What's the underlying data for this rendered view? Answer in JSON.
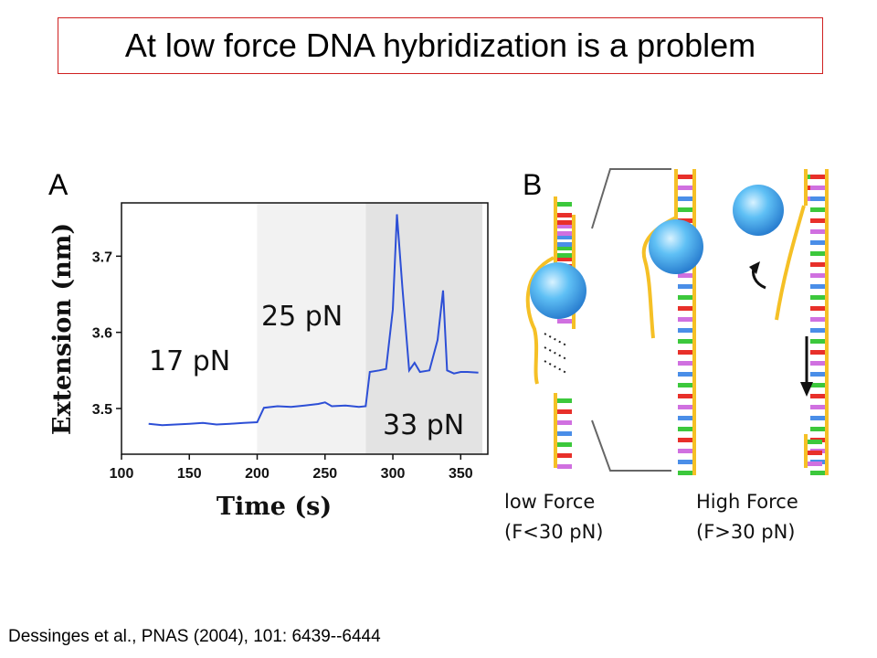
{
  "title": "At low force DNA hybridization is a problem",
  "citation": "Dessinges et al., PNAS (2004), 101: 6439--6444",
  "panel_a": {
    "letter": "A"
  },
  "panel_b": {
    "letter": "B",
    "caption_low_line1": "low Force",
    "caption_low_line2": "(F<30 pN)",
    "caption_high_line1": "High Force",
    "caption_high_line2": "(F>30 pN)"
  },
  "colors": {
    "trace": "#2d4fd6",
    "shade_mid": "#f2f2f2",
    "shade_high": "#e3e3e3",
    "backbone": "#f5c026",
    "bead": "#4fb3f0",
    "title_border": "#d02020"
  },
  "chart_data": {
    "type": "line",
    "xlabel": "Time (s)",
    "ylabel": "Extension (nm)",
    "xlim": [
      100,
      370
    ],
    "ylim": [
      3.44,
      3.77
    ],
    "x_ticks": [
      100,
      150,
      200,
      250,
      300,
      350
    ],
    "y_ticks": [
      3.5,
      3.6,
      3.7
    ],
    "regions": [
      {
        "label": "17 pN",
        "x": [
          100,
          200
        ]
      },
      {
        "label": "25 pN",
        "x": [
          200,
          280
        ]
      },
      {
        "label": "33 pN",
        "x": [
          280,
          366
        ]
      }
    ],
    "series": [
      {
        "name": "",
        "x": [
          120,
          130,
          140,
          150,
          160,
          170,
          180,
          190,
          200,
          205,
          215,
          225,
          235,
          245,
          250,
          255,
          265,
          275,
          280,
          283,
          290,
          295,
          300,
          303,
          307,
          312,
          316,
          320,
          327,
          333,
          337,
          340,
          345,
          350,
          355,
          363
        ],
        "y": [
          3.48,
          3.478,
          3.479,
          3.48,
          3.481,
          3.479,
          3.48,
          3.481,
          3.482,
          3.501,
          3.503,
          3.502,
          3.504,
          3.506,
          3.508,
          3.503,
          3.504,
          3.502,
          3.503,
          3.548,
          3.55,
          3.552,
          3.63,
          3.755,
          3.66,
          3.55,
          3.56,
          3.548,
          3.55,
          3.59,
          3.655,
          3.55,
          3.546,
          3.548,
          3.548,
          3.547
        ]
      }
    ]
  }
}
